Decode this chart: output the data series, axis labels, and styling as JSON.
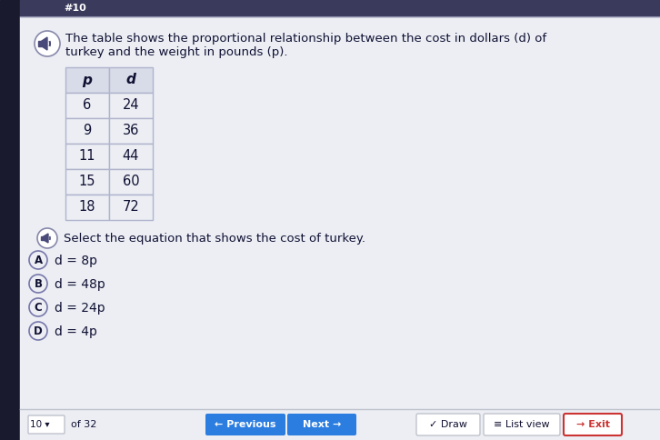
{
  "bg_color": "#f0f1f5",
  "content_bg": "#eceef4",
  "table_headers": [
    "p",
    "d"
  ],
  "table_data": [
    [
      6,
      24
    ],
    [
      9,
      36
    ],
    [
      11,
      44
    ],
    [
      15,
      60
    ],
    [
      18,
      72
    ]
  ],
  "question_text": "Select the equation that shows the cost of turkey.",
  "options": [
    {
      "label": "A",
      "eq": "d = 8p"
    },
    {
      "label": "B",
      "eq": "d = 48p"
    },
    {
      "label": "C",
      "eq": "d = 24p"
    },
    {
      "label": "D",
      "eq": "d = 4p"
    }
  ],
  "footer_page": "10",
  "footer_total": "of 32",
  "table_border_color": "#b0b4cc",
  "header_bg": "#d8dbe8",
  "cell_bg": "#eceef4",
  "text_color": "#111133",
  "btn_blue_color": "#2b7de0",
  "btn_exit_color": "#cc3333",
  "top_bar_color": "#3a3a5c",
  "left_bar_color": "#1a1a2e",
  "speaker_fill": "#4a4a7a",
  "circle_border": "#8888aa",
  "option_circle_border": "#7777aa",
  "separator_color": "#c0c2cc",
  "footer_bg": "#eceef4"
}
